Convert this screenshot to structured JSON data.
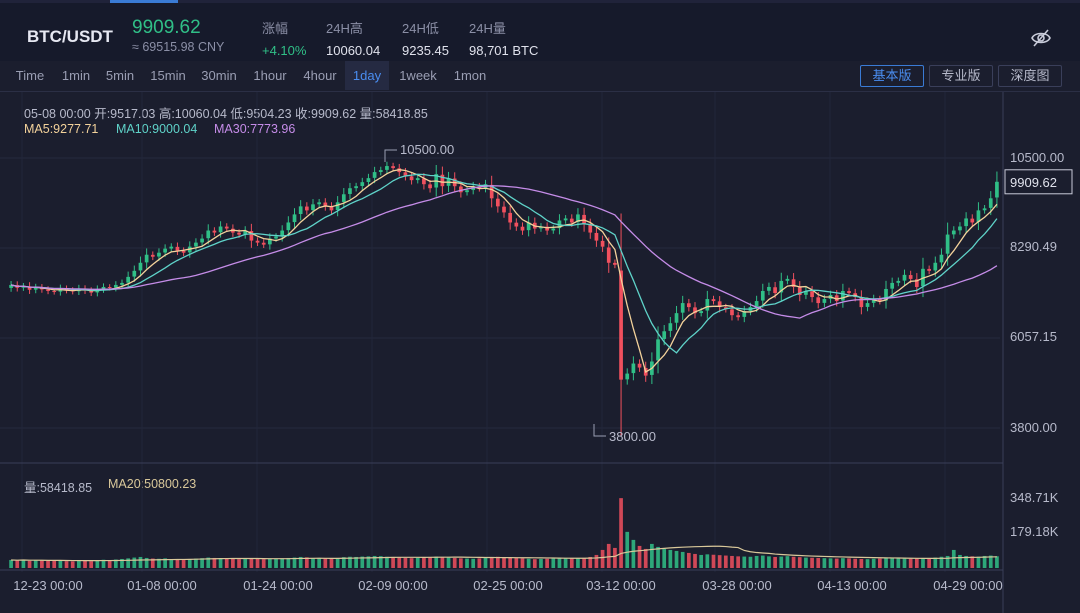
{
  "header": {
    "pair": "BTC/USDT",
    "price": "9909.62",
    "cny": "≈ 69515.98 CNY",
    "stats": [
      {
        "label": "涨幅",
        "value": "+4.10%",
        "up": true
      },
      {
        "label": "24H高",
        "value": "10060.04",
        "up": false
      },
      {
        "label": "24H低",
        "value": "9235.45",
        "up": false
      },
      {
        "label": "24H量",
        "value": "98,701 BTC",
        "up": false
      }
    ]
  },
  "toolbar": {
    "timeframes": [
      "Time",
      "1min",
      "5min",
      "15min",
      "30min",
      "1hour",
      "4hour",
      "1day",
      "1week",
      "1mon"
    ],
    "active_timeframe": "1day",
    "views": [
      "基本版",
      "专业版",
      "深度图"
    ],
    "active_view": "基本版"
  },
  "info": {
    "ohlc": "05-08 00:00  开:9517.03  高:10060.04  低:9504.23  收:9909.62  量:58418.85",
    "ma5": "MA5:9277.71",
    "ma10": "MA10:9000.04",
    "ma30": "MA30:7773.96",
    "vol": "量:58418.85",
    "ma20": "MA20:50800.23"
  },
  "colors": {
    "up": "#30bf87",
    "down": "#f0505e",
    "ma5": "#f3d29b",
    "ma10": "#5fd3c9",
    "ma30": "#c58ce8",
    "ma20": "#d9c89a"
  },
  "chart_data": {
    "type": "candlestick",
    "price_axis_ticks": [
      "10500.00",
      "8290.49",
      "6057.15",
      "3800.00"
    ],
    "price_tick_values": [
      10500,
      8290.49,
      6057.15,
      3800
    ],
    "volume_axis_ticks": [
      "348.71K",
      "179.18K"
    ],
    "volume_tick_values": [
      348710,
      179180
    ],
    "x_ticks": [
      "12-23 00:00",
      "01-08 00:00",
      "01-24 00:00",
      "02-09 00:00",
      "02-25 00:00",
      "03-12 00:00",
      "03-28 00:00",
      "04-13 00:00",
      "04-29 00:00"
    ],
    "current_price": "9909.62",
    "current_price_value": 9909.62,
    "annotations": [
      {
        "text": "10500.00",
        "value": 10500
      },
      {
        "text": "3800.00",
        "value": 3800
      }
    ],
    "close": [
      7350,
      7280,
      7320,
      7230,
      7290,
      7240,
      7200,
      7180,
      7260,
      7220,
      7190,
      7260,
      7210,
      7160,
      7240,
      7300,
      7280,
      7350,
      7400,
      7550,
      7700,
      7900,
      8100,
      8050,
      8150,
      8250,
      8300,
      8200,
      8150,
      8300,
      8400,
      8500,
      8700,
      8650,
      8800,
      8750,
      8650,
      8600,
      8700,
      8450,
      8400,
      8350,
      8500,
      8550,
      8700,
      8900,
      9100,
      9300,
      9200,
      9350,
      9400,
      9300,
      9200,
      9400,
      9600,
      9750,
      9800,
      9900,
      10000,
      10150,
      10200,
      10300,
      10250,
      10150,
      10050,
      9950,
      10000,
      9850,
      9750,
      10100,
      9800,
      10000,
      9800,
      9650,
      9700,
      9800,
      9750,
      9850,
      9500,
      9300,
      9150,
      8900,
      8800,
      8700,
      8900,
      8750,
      8800,
      8700,
      8750,
      8950,
      9000,
      8900,
      9100,
      8850,
      8650,
      8450,
      8300,
      7900,
      7850,
      5000,
      5150,
      5400,
      5300,
      5100,
      5450,
      6000,
      6200,
      6400,
      6650,
      6900,
      6800,
      6650,
      6700,
      7000,
      6950,
      6800,
      6750,
      6600,
      6550,
      6700,
      6800,
      6950,
      7200,
      7300,
      7150,
      7450,
      7500,
      7300,
      7100,
      7200,
      7050,
      6900,
      7000,
      7100,
      6950,
      7200,
      7150,
      7050,
      6800,
      6900,
      7000,
      6950,
      7250,
      7400,
      7450,
      7600,
      7500,
      7300,
      7750,
      7700,
      7900,
      8100,
      8600,
      8700,
      8800,
      9000,
      8900,
      9200,
      9250,
      9500,
      9909.62
    ],
    "volume": [
      40000,
      38000,
      42000,
      36000,
      39000,
      37000,
      35000,
      36000,
      38000,
      34000,
      33000,
      36000,
      35000,
      34000,
      37000,
      41000,
      39000,
      42000,
      45000,
      48000,
      52000,
      55000,
      50000,
      47000,
      46000,
      48000,
      44000,
      42000,
      43000,
      45000,
      47000,
      49000,
      52000,
      50000,
      48000,
      46000,
      45000,
      44000,
      47000,
      49000,
      46000,
      44000,
      45000,
      46000,
      48000,
      50000,
      52000,
      55000,
      53000,
      50000,
      49000,
      48000,
      47000,
      50000,
      54000,
      56000,
      55000,
      57000,
      58000,
      60000,
      59000,
      56000,
      54000,
      52000,
      50000,
      49000,
      51000,
      53000,
      55000,
      57000,
      54000,
      52000,
      50000,
      48000,
      47000,
      46000,
      48000,
      50000,
      53000,
      56000,
      54000,
      52000,
      50000,
      48000,
      46000,
      44000,
      45000,
      46000,
      47000,
      48000,
      49000,
      47000,
      48000,
      50000,
      55000,
      65000,
      90000,
      120000,
      100000,
      348000,
      180000,
      140000,
      110000,
      95000,
      120000,
      105000,
      95000,
      90000,
      85000,
      80000,
      75000,
      70000,
      65000,
      68000,
      66000,
      64000,
      62000,
      60000,
      58000,
      57000,
      56000,
      60000,
      62000,
      58000,
      55000,
      57000,
      59000,
      56000,
      54000,
      52000,
      51000,
      50000,
      49000,
      48000,
      47000,
      49000,
      48000,
      46000,
      45000,
      44000,
      46000,
      47000,
      49000,
      50000,
      48000,
      47000,
      46000,
      48000,
      50000,
      49000,
      52000,
      56000,
      60000,
      90000,
      65000,
      60000,
      58000,
      57000,
      60000,
      62000,
      58418.85
    ]
  }
}
